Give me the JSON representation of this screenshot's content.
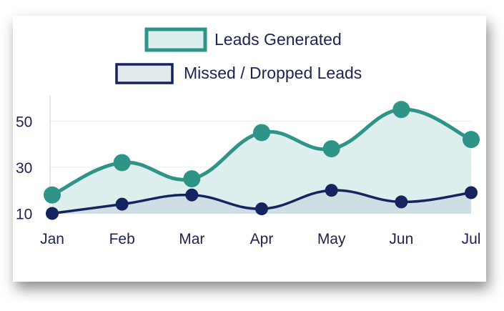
{
  "chart_data": {
    "type": "area",
    "categories": [
      "Jan",
      "Feb",
      "Mar",
      "Apr",
      "May",
      "Jun",
      "Jul"
    ],
    "series": [
      {
        "name": "Leads Generated",
        "values": [
          18,
          32,
          25,
          45,
          38,
          55,
          42
        ],
        "stroke": "#2f9488",
        "fill": "#dcefec"
      },
      {
        "name": "Missed / Dropped Leads",
        "values": [
          10,
          14,
          18,
          12,
          20,
          15,
          19
        ],
        "stroke": "#152460",
        "fill": "#cad8e0"
      }
    ],
    "yticks": [
      10,
      30,
      50
    ],
    "ylim": [
      8,
      60
    ],
    "grid": true,
    "legend": "top-center",
    "colors": {
      "text": "#1c2350",
      "grid": "#ececec",
      "axis": "#d6d6d6"
    }
  }
}
